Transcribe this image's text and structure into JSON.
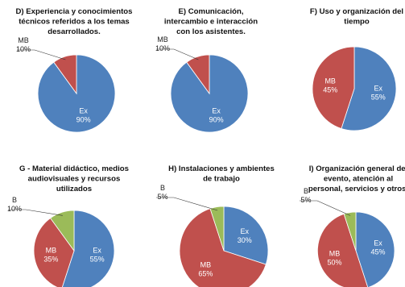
{
  "colors": {
    "Ex": "#4f81bd",
    "MB": "#c0504d",
    "B": "#9bbb59"
  },
  "chart_data": [
    {
      "type": "pie",
      "title": [
        "D) Experiencia y conocimientos",
        "técnicos referidos a los temas",
        "desarrollados."
      ],
      "slices": [
        {
          "name": "Ex",
          "value": 90,
          "label": "90%"
        },
        {
          "name": "MB",
          "value": 10,
          "label": "10%"
        }
      ]
    },
    {
      "type": "pie",
      "title": [
        "E) Comunicación,",
        "intercambio e interacción",
        "con los asistentes."
      ],
      "slices": [
        {
          "name": "Ex",
          "value": 90,
          "label": "90%"
        },
        {
          "name": "MB",
          "value": 10,
          "label": "10%"
        }
      ]
    },
    {
      "type": "pie",
      "title": [
        "F) Uso y organización del",
        "tiempo"
      ],
      "slices": [
        {
          "name": "Ex",
          "value": 55,
          "label": "55%"
        },
        {
          "name": "MB",
          "value": 45,
          "label": "45%"
        }
      ]
    },
    {
      "type": "pie",
      "title": [
        "G - Material didáctico, medios",
        "audiovisuales y recursos",
        "utilizados"
      ],
      "slices": [
        {
          "name": "Ex",
          "value": 55,
          "label": "55%"
        },
        {
          "name": "MB",
          "value": 35,
          "label": "35%"
        },
        {
          "name": "B",
          "value": 10,
          "label": "10%"
        }
      ]
    },
    {
      "type": "pie",
      "title": [
        "H) Instalaciones y ambientes",
        "de trabajo"
      ],
      "slices": [
        {
          "name": "Ex",
          "value": 30,
          "label": "30%"
        },
        {
          "name": "MB",
          "value": 65,
          "label": "65%"
        },
        {
          "name": "B",
          "value": 5,
          "label": "5%"
        }
      ]
    },
    {
      "type": "pie",
      "title": [
        "I) Organización general del",
        "evento, atención al",
        "personal, servicios y otros."
      ],
      "slices": [
        {
          "name": "Ex",
          "value": 45,
          "label": "45%"
        },
        {
          "name": "MB",
          "value": 50,
          "label": "50%"
        },
        {
          "name": "B",
          "value": 5,
          "label": "5%"
        }
      ]
    }
  ]
}
